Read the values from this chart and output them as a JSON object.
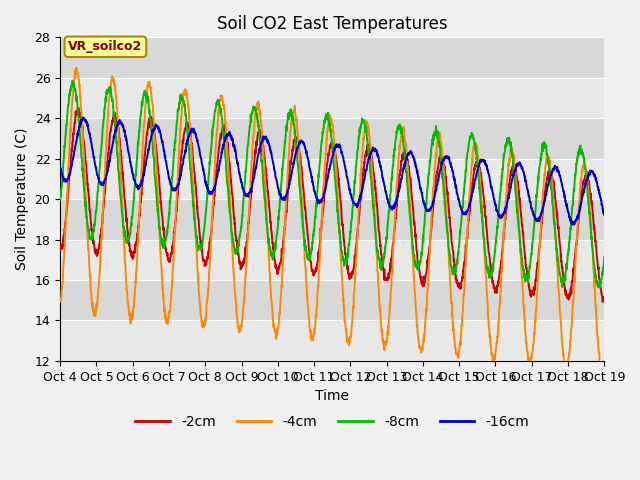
{
  "title": "Soil CO2 East Temperatures",
  "xlabel": "Time",
  "ylabel": "Soil Temperature (C)",
  "ylim": [
    12,
    28
  ],
  "xlim": [
    0,
    15
  ],
  "xtick_labels": [
    "Oct 4",
    "Oct 5",
    "Oct 6",
    "Oct 7",
    "Oct 8",
    "Oct 9",
    "Oct 10",
    "Oct 11",
    "Oct 12",
    "Oct 13",
    "Oct 14",
    "Oct 15",
    "Oct 16",
    "Oct 17",
    "Oct 18",
    "Oct 19"
  ],
  "legend_labels": [
    "-2cm",
    "-4cm",
    "-8cm",
    "-16cm"
  ],
  "line_colors": [
    "#cc0000",
    "#ff8800",
    "#00bb00",
    "#0000cc"
  ],
  "annotation_text": "VR_soilco2",
  "annotation_color": "#880000",
  "annotation_bg": "#ffff99",
  "annotation_border": "#aa8800",
  "plot_bg_light": "#e8e8e8",
  "plot_bg_dark": "#d8d8d8",
  "fig_bg": "#f0f0f0",
  "title_fontsize": 12,
  "label_fontsize": 10,
  "tick_fontsize": 9
}
